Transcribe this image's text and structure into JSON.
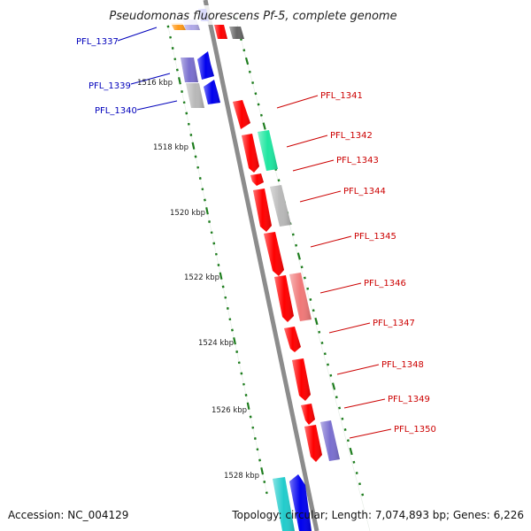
{
  "title": "Pseudomonas fluorescens Pf-5, complete genome",
  "accession_label": "Accession: NC_004129",
  "summary": "Topology: circular; Length: 7,074,893 bp; Genes: 6,226",
  "colors": {
    "backbone": "#8c8c8c",
    "tick": "#1e7d1e",
    "forward_gene_label": "#0000bb",
    "reverse_gene_label": "#cc0000",
    "gene_red": "#ff0000",
    "gene_blue": "#0000ee",
    "gene_lavender": "#7a6fcf",
    "gene_grey": "#b8b8b8",
    "gene_teal": "#1ee6a0",
    "gene_salmon": "#f07878",
    "gene_orange": "#ff9a1a",
    "gene_darkgrey": "#666666",
    "gene_cyan": "#22cccc"
  },
  "scale": {
    "kbp_labels": [
      "1516 kbp",
      "1518 kbp",
      "1520 kbp",
      "1522 kbp",
      "1524 kbp",
      "1526 kbp",
      "1528 kbp"
    ]
  },
  "gene_labels": {
    "left": [
      "PFL_1337",
      "PFL_1339",
      "PFL_1340"
    ],
    "right": [
      "PFL_1341",
      "PFL_1342",
      "PFL_1343",
      "PFL_1344",
      "PFL_1345",
      "PFL_1346",
      "PFL_1347",
      "PFL_1348",
      "PFL_1349",
      "PFL_1350"
    ]
  }
}
